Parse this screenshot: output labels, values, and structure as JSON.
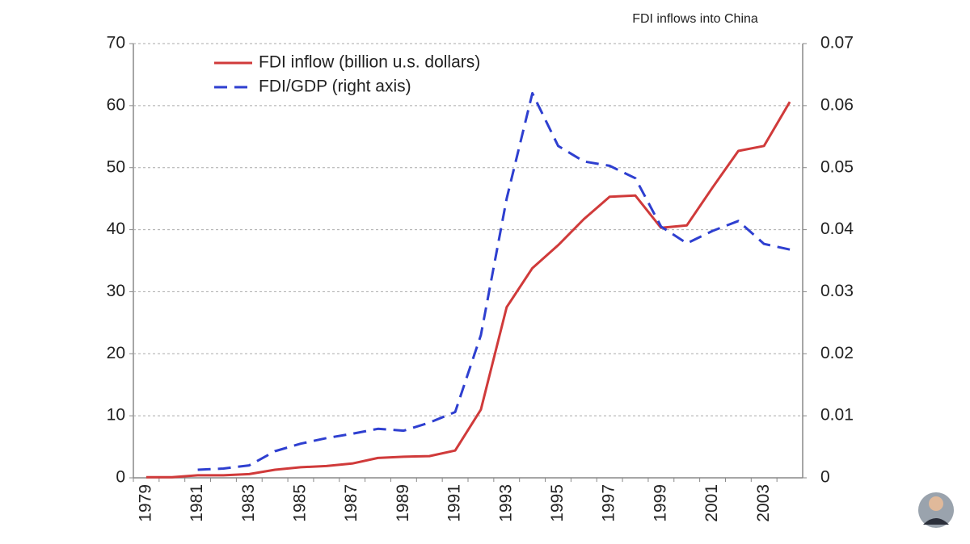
{
  "chart_data": {
    "type": "line",
    "title": "FDI inflows into China",
    "categories": [
      "1979",
      null,
      "1981",
      null,
      "1983",
      null,
      "1985",
      null,
      "1987",
      null,
      "1989",
      null,
      "1991",
      null,
      "1993",
      null,
      "1995",
      null,
      "1997",
      null,
      "1999",
      null,
      "2001",
      null,
      "2003",
      null
    ],
    "series": [
      {
        "name": "FDI inflow (billion u.s. dollars)",
        "color": "#d03a3a",
        "dash": "solid",
        "values": [
          0.1,
          0.1,
          0.4,
          0.4,
          0.6,
          1.3,
          1.7,
          1.9,
          2.3,
          3.2,
          3.4,
          3.5,
          4.4,
          11.0,
          27.5,
          33.8,
          37.5,
          41.7,
          45.3,
          45.5,
          40.3,
          40.7,
          46.8,
          52.7,
          53.5,
          60.6
        ]
      },
      {
        "name": "FDI/GDP (right axis)",
        "color": "#2e3fd0",
        "dash": "dashed",
        "axis": "y2",
        "values": [
          null,
          null,
          0.0013,
          0.0015,
          0.002,
          0.0043,
          0.0055,
          0.0064,
          0.0071,
          0.0079,
          0.0076,
          0.0089,
          0.0106,
          0.023,
          0.045,
          0.062,
          0.0535,
          0.051,
          0.0503,
          0.0483,
          0.0405,
          0.0378,
          0.0398,
          0.0414,
          0.0377,
          0.0368
        ]
      }
    ],
    "ylim": [
      0,
      70
    ],
    "yticks": [
      0,
      10,
      20,
      30,
      40,
      50,
      60,
      70
    ],
    "y2lim": [
      0,
      0.07
    ],
    "y2ticks": [
      0,
      0.01,
      0.02,
      0.03,
      0.04,
      0.05,
      0.06,
      0.07
    ],
    "grid": true,
    "legend": "top-left"
  }
}
